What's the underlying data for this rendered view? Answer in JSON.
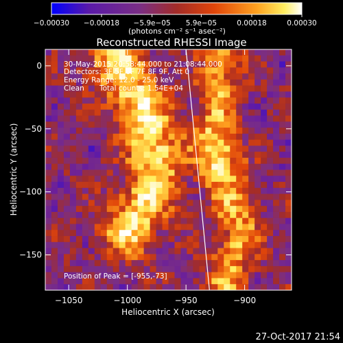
{
  "chart_data": {
    "type": "heatmap",
    "title": "Reconstructed RHESSI Image",
    "xlabel": "Heliocentric X (arcsec)",
    "ylabel": "Heliocentric Y (arcsec)",
    "xlim": [
      -1070,
      -860
    ],
    "ylim": [
      -178,
      13
    ],
    "x_ticks": [
      -1050,
      -1000,
      -950,
      -900
    ],
    "x_tick_labels": [
      "−1050",
      "−1000",
      "−950",
      "−900"
    ],
    "y_ticks": [
      0,
      -50,
      -100,
      -150
    ],
    "y_tick_labels": [
      "0",
      "−50",
      "−100",
      "−150"
    ],
    "grid": false,
    "colorbar": {
      "min": -0.0003,
      "max": 0.0003,
      "ticks": [
        -0.0003,
        -0.00018,
        -5.9e-05,
        5.9e-05,
        0.00018,
        0.0003
      ],
      "tick_labels": [
        "−0.00030",
        "−0.00018",
        "−5.9e−05",
        "5.9e−05",
        "0.00018",
        "0.00030"
      ],
      "units": "(photons cm⁻² s⁻¹ asec⁻²)",
      "colormap": [
        "#0000ff",
        "#6a1e9c",
        "#7a2e86",
        "#a32c28",
        "#e0450a",
        "#ffa220",
        "#ffee60",
        "#ffffff"
      ]
    },
    "image": {
      "peak_position": [
        -955,
        -73
      ],
      "hot_ridge": [
        [
          -1010,
          5
        ],
        [
          -985,
          -40
        ],
        [
          -975,
          -72
        ],
        [
          -980,
          -100
        ],
        [
          -1000,
          -130
        ]
      ],
      "secondary_ridge": [
        [
          -920,
          5
        ],
        [
          -925,
          -50
        ],
        [
          -915,
          -90
        ],
        [
          -905,
          -130
        ],
        [
          -915,
          -170
        ]
      ]
    },
    "limb_line": [
      [
        -950,
        13
      ],
      [
        -930,
        -178
      ]
    ],
    "annotations": {
      "time_range": "30-May-2015 20:58:44.000 to 21:08:44.000",
      "detectors": "Detectors: 3F 5F 6F 7F 8F 9F, Att 0",
      "energy": "Energy Range: 12.0 - 25.0 keV",
      "method": "Clean",
      "total_counts": "Total counts: 1.54E+04",
      "peak": "Position of Peak = [-955,-73]"
    }
  },
  "footer": {
    "timestamp": "27-Oct-2017 21:54"
  }
}
